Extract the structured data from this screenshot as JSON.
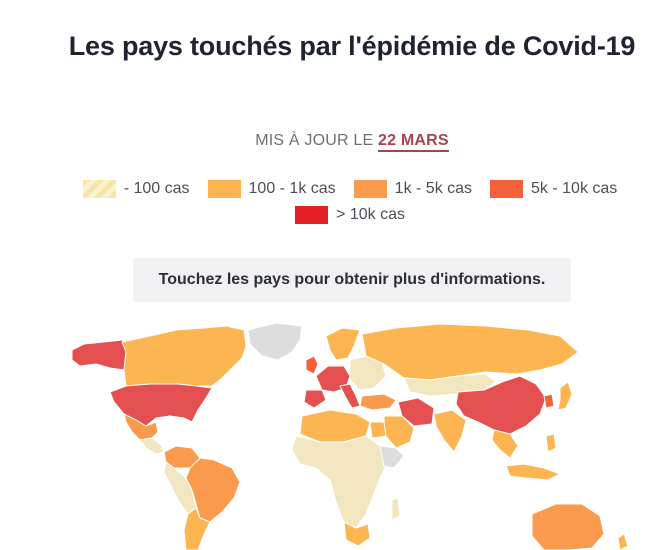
{
  "header": {
    "title": "Les pays touchés par l'épidémie de Covid-19",
    "updated_prefix": "MIS À JOUR LE",
    "updated_date": "22 MARS"
  },
  "legend": {
    "items": [
      {
        "label": "- 100 cas",
        "color": "#f6e6a6"
      },
      {
        "label": "100 - 1k cas",
        "color": "#fcb551"
      },
      {
        "label": "1k - 5k cas",
        "color": "#f99a4c"
      },
      {
        "label": "5k - 10k cas",
        "color": "#f5603b"
      },
      {
        "label": "> 10k cas",
        "color": "#e32026"
      }
    ]
  },
  "info_box": {
    "text": "Touchez les pays pour obtenir plus d'informations."
  },
  "colors": {
    "no_data": "#dddddd",
    "under_100": "#f1e6c0",
    "c100_1k": "#fcb551",
    "c1k_5k": "#f99a4c",
    "c5k_10k": "#f5603b",
    "over_10k": "#e45050"
  }
}
